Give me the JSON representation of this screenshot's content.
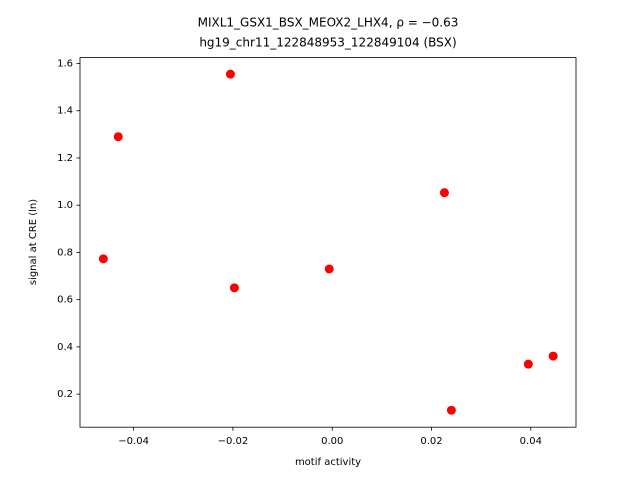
{
  "chart_data": {
    "type": "scatter",
    "title": [
      "MIXL1_GSX1_BSX_MEOX2_LHX4, ρ = −0.63",
      "hg19_chr11_122848953_122849104 (BSX)"
    ],
    "x_label": "motif activity",
    "y_label": "signal at CRE (ln)",
    "x": [
      -0.0461,
      -0.0431,
      -0.0205,
      -0.0197,
      -0.0006,
      0.0226,
      0.024,
      0.0395,
      0.0445
    ],
    "values": [
      0.773,
      1.29,
      1.555,
      0.65,
      0.73,
      1.053,
      0.132,
      0.327,
      0.361
    ],
    "color": "#ff0000",
    "xlim": [
      -0.0508,
      0.0491
    ],
    "ylim": [
      0.06,
      1.625
    ],
    "xticks": [
      {
        "value": -0.04,
        "label": "−0.04"
      },
      {
        "value": -0.02,
        "label": "−0.02"
      },
      {
        "value": 0,
        "label": "0.00"
      },
      0.02,
      0.04
    ],
    "yticks": [
      0.2,
      0.4,
      0.6,
      0.8,
      {
        "value": 1,
        "label": "1.0"
      },
      1.2,
      1.4,
      1.6
    ]
  }
}
